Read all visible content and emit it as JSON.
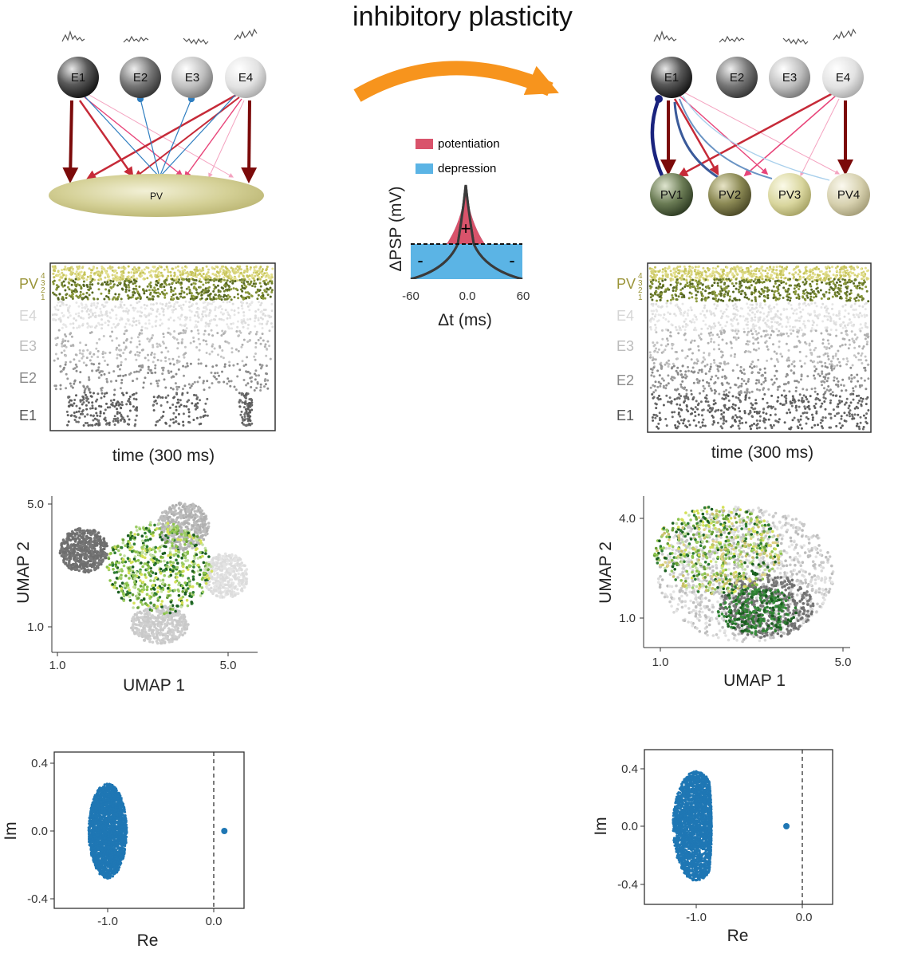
{
  "title": "inhibitory plasticity",
  "colors": {
    "arrow": "#f7941d",
    "potentiation": "#d9536b",
    "depression": "#5bb4e5",
    "e_to_pv_strong": "#7b0a0a",
    "e_to_pv": "#c62a38",
    "e_to_pv_light": "#f4a3c0",
    "pv_to_e": "#2f7ec0",
    "pv_to_e_strong": "#1a237e",
    "eig": "#1f77b4",
    "pv_fill": "#d4d096"
  },
  "left": {
    "excitatory": [
      "E1",
      "E2",
      "E3",
      "E4"
    ],
    "pv_label": "PV",
    "raster": {
      "pv_label": "PV",
      "pv_subs": [
        "4",
        "3",
        "2",
        "1"
      ],
      "e_rows": [
        "E4",
        "E3",
        "E2",
        "E1"
      ],
      "xlabel": "time (300 ms)"
    },
    "umap": {
      "xlabel": "UMAP 1",
      "ylabel": "UMAP 2",
      "xticks": [
        "1.0",
        "5.0"
      ],
      "yticks": [
        "5.0",
        "1.0"
      ]
    },
    "eig": {
      "xlabel": "Re",
      "ylabel": "Im",
      "xticks": [
        "-1.0",
        "0.0"
      ],
      "yticks": [
        "0.4",
        "0.0",
        "-0.4"
      ],
      "outlier_re": 0.1,
      "bulk_center_re": -1.0,
      "bulk_halfwidth_re": 0.18,
      "bulk_halfheight_im": 0.28
    }
  },
  "right": {
    "excitatory": [
      "E1",
      "E2",
      "E3",
      "E4"
    ],
    "pv_units": [
      "PV1",
      "PV2",
      "PV3",
      "PV4"
    ],
    "raster": {
      "pv_label": "PV",
      "pv_subs": [
        "4",
        "3",
        "2",
        "1"
      ],
      "e_rows": [
        "E4",
        "E3",
        "E2",
        "E1"
      ],
      "xlabel": "time (300 ms)"
    },
    "umap": {
      "xlabel": "UMAP 1",
      "ylabel": "UMAP 2",
      "xticks": [
        "1.0",
        "5.0"
      ],
      "yticks": [
        "4.0",
        "1.0"
      ]
    },
    "eig": {
      "xlabel": "Re",
      "ylabel": "Im",
      "xticks": [
        "-1.0",
        "0.0"
      ],
      "yticks": [
        "0.4",
        "0.0",
        "-0.4"
      ],
      "outlier_re": -0.15,
      "bulk_center_re": -1.0,
      "bulk_halfwidth_re": 0.22,
      "bulk_halfheight_im": 0.38
    }
  },
  "stdp": {
    "legend": [
      "potentiation",
      "depression"
    ],
    "xlabel": "Δt (ms)",
    "ylabel": "ΔPSP (mV)",
    "xticks": [
      "-60",
      "0.0",
      "60"
    ],
    "plus": "+",
    "minus": "-"
  }
}
